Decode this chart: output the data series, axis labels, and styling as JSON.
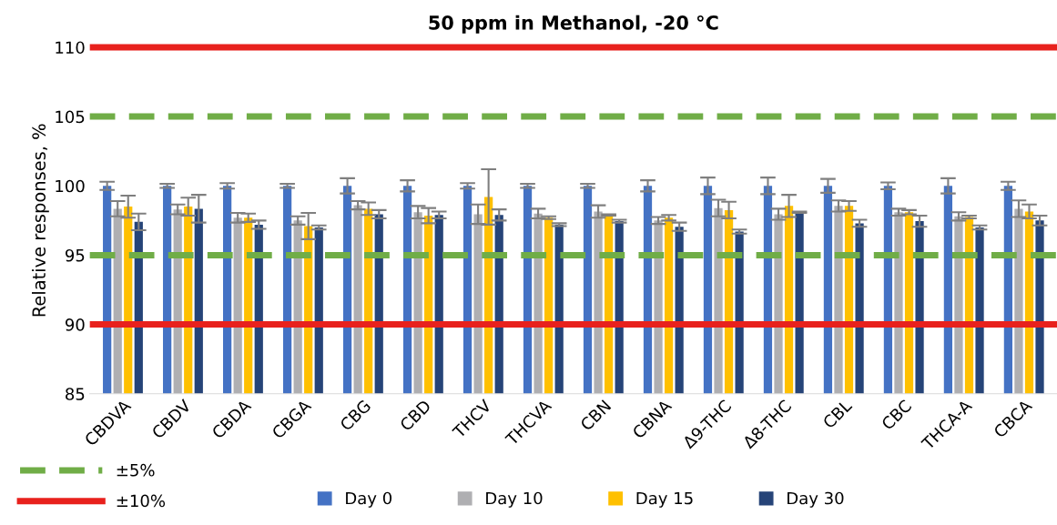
{
  "chart_data": {
    "type": "bar",
    "title": "50 ppm in Methanol, -20 °C",
    "ylabel": "Relative responses, %",
    "categories": [
      "CBDVA",
      "CBDV",
      "CBDA",
      "CBGA",
      "CBG",
      "CBD",
      "THCV",
      "THCVA",
      "CBN",
      "CBNA",
      "Δ9-THC",
      "Δ8-THC",
      "CBL",
      "CBC",
      "THCA-A",
      "CBCA"
    ],
    "series": [
      {
        "name": "Day 0",
        "color": "#4472c4",
        "values": [
          100,
          100,
          100,
          100,
          100,
          100,
          100,
          100,
          100,
          100,
          100,
          100,
          100,
          100,
          100,
          100
        ],
        "errors": [
          0.3,
          0.15,
          0.2,
          0.15,
          0.55,
          0.4,
          0.2,
          0.15,
          0.15,
          0.4,
          0.6,
          0.6,
          0.5,
          0.25,
          0.55,
          0.3
        ]
      },
      {
        "name": "Day 10",
        "color": "#afafb2",
        "values": [
          98.35,
          98.3,
          97.7,
          97.5,
          98.6,
          98.1,
          97.95,
          98.0,
          98.15,
          97.5,
          98.4,
          97.95,
          98.55,
          98.1,
          97.8,
          98.35
        ],
        "errors": [
          0.55,
          0.35,
          0.35,
          0.3,
          0.3,
          0.45,
          0.7,
          0.35,
          0.45,
          0.25,
          0.6,
          0.4,
          0.4,
          0.25,
          0.3,
          0.6
        ]
      },
      {
        "name": "Day 15",
        "color": "#ffc000",
        "values": [
          98.5,
          98.5,
          97.7,
          97.1,
          98.35,
          97.85,
          99.2,
          97.7,
          97.9,
          97.7,
          98.25,
          98.55,
          98.55,
          98.1,
          97.75,
          98.15
        ],
        "errors": [
          0.8,
          0.65,
          0.3,
          0.95,
          0.45,
          0.55,
          2.0,
          0.1,
          0.05,
          0.2,
          0.6,
          0.8,
          0.35,
          0.15,
          0.1,
          0.5
        ]
      },
      {
        "name": "Day 30",
        "color": "#264478",
        "values": [
          97.4,
          98.35,
          97.2,
          97.0,
          97.95,
          97.9,
          97.9,
          97.2,
          97.45,
          97.05,
          96.7,
          98.1,
          97.3,
          97.45,
          97.0,
          97.5
        ],
        "errors": [
          0.6,
          1.0,
          0.3,
          0.15,
          0.3,
          0.25,
          0.4,
          0.1,
          0.1,
          0.3,
          0.15,
          0.05,
          0.25,
          0.4,
          0.15,
          0.35
        ]
      }
    ],
    "ylim": [
      85,
      110
    ],
    "yticks": [
      85,
      90,
      95,
      100,
      105,
      110
    ],
    "grid": false,
    "legend": "bottom",
    "ref_lines": [
      {
        "axis": "y",
        "value": 105,
        "color": "#70ad47",
        "line_style": "dashed"
      },
      {
        "axis": "y",
        "value": 95,
        "color": "#70ad47",
        "line_style": "dashed"
      },
      {
        "axis": "y",
        "value": 110,
        "color": "#e8211d",
        "line_style": "solid"
      },
      {
        "axis": "y",
        "value": 90,
        "color": "#e8211d",
        "line_style": "solid"
      }
    ],
    "annotations": [
      "±5%",
      "±10%"
    ]
  }
}
